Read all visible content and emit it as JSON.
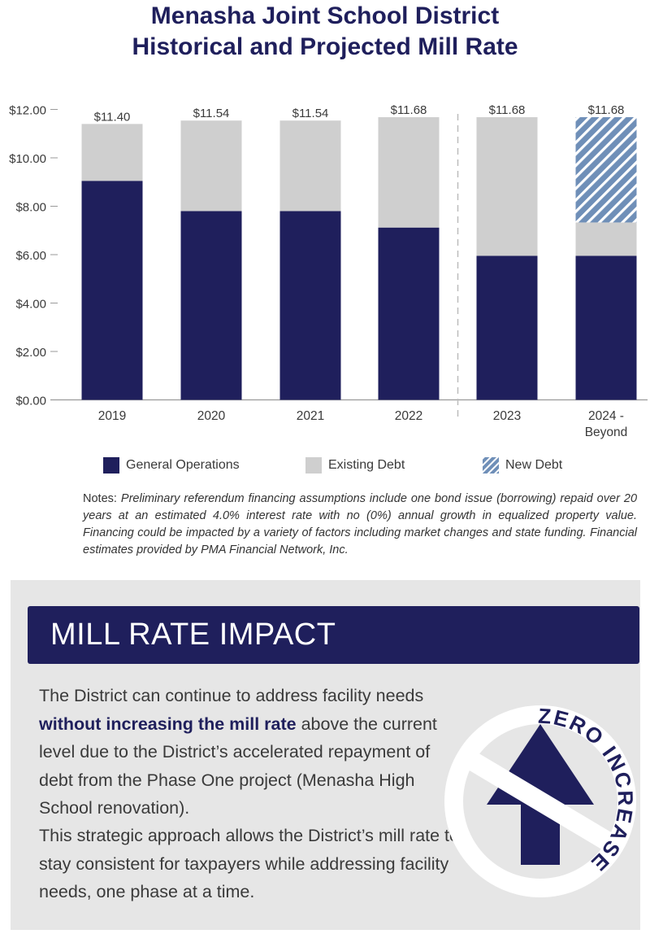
{
  "header": {
    "title_line1": "Menasha Joint School District",
    "title_line2": "Historical and Projected Mill Rate"
  },
  "colors": {
    "navy": "#1f1f5c",
    "light_gray": "#cfcfcf",
    "new_debt_blue": "#6f8fb8",
    "panel_gray": "#e6e6e6"
  },
  "chart_data": {
    "type": "bar",
    "stacked": true,
    "categories": [
      "2019",
      "2020",
      "2021",
      "2022",
      "2023",
      "2024 -\nBeyond"
    ],
    "series": [
      {
        "name": "General Operations",
        "values": [
          9.05,
          7.8,
          7.8,
          7.12,
          5.95,
          5.95
        ],
        "color": "#1f1f5c"
      },
      {
        "name": "Existing Debt",
        "values": [
          2.35,
          3.74,
          3.74,
          4.56,
          5.73,
          1.38
        ],
        "color": "#cfcfcf"
      },
      {
        "name": "New Debt",
        "values": [
          0,
          0,
          0,
          0,
          0,
          4.35
        ],
        "color": "#6f8fb8",
        "pattern": "diagonal-stripes"
      }
    ],
    "totals": [
      "$11.40",
      "$11.54",
      "$11.54",
      "$11.68",
      "$11.68",
      "$11.68"
    ],
    "y_ticks": [
      "$0.00",
      "$2.00",
      "$4.00",
      "$6.00",
      "$8.00",
      "$10.00",
      "$12.00"
    ],
    "ylim": [
      0,
      12
    ],
    "divider_after_category": "2022",
    "legend_position": "bottom"
  },
  "legend": {
    "general_operations": "General Operations",
    "existing_debt": "Existing Debt",
    "new_debt": "New Debt"
  },
  "notes": {
    "lead": "Notes:",
    "body": "Preliminary referendum financing assumptions include one bond issue (borrowing) repaid over 20 years at an estimated 4.0% interest rate with no (0%) annual growth in equalized property value. Financing could be impacted by a variety of factors including market changes and state funding. Financial estimates provided by PMA Financial Network, Inc."
  },
  "impact": {
    "banner_title": "MILL RATE IMPACT",
    "para1_start": "The District can continue to address facility needs",
    "para1_highlight": "without increasing the mill rate",
    "para1_end": "above the current level due to the District’s accelerated repayment of debt from the Phase One project (Menasha High School renovation).",
    "para2": "This strategic approach allows the District’s mill rate to stay consistent for taxpayers while addressing facility needs, one phase at a time.",
    "badge_text": "ZERO INCREASE"
  }
}
